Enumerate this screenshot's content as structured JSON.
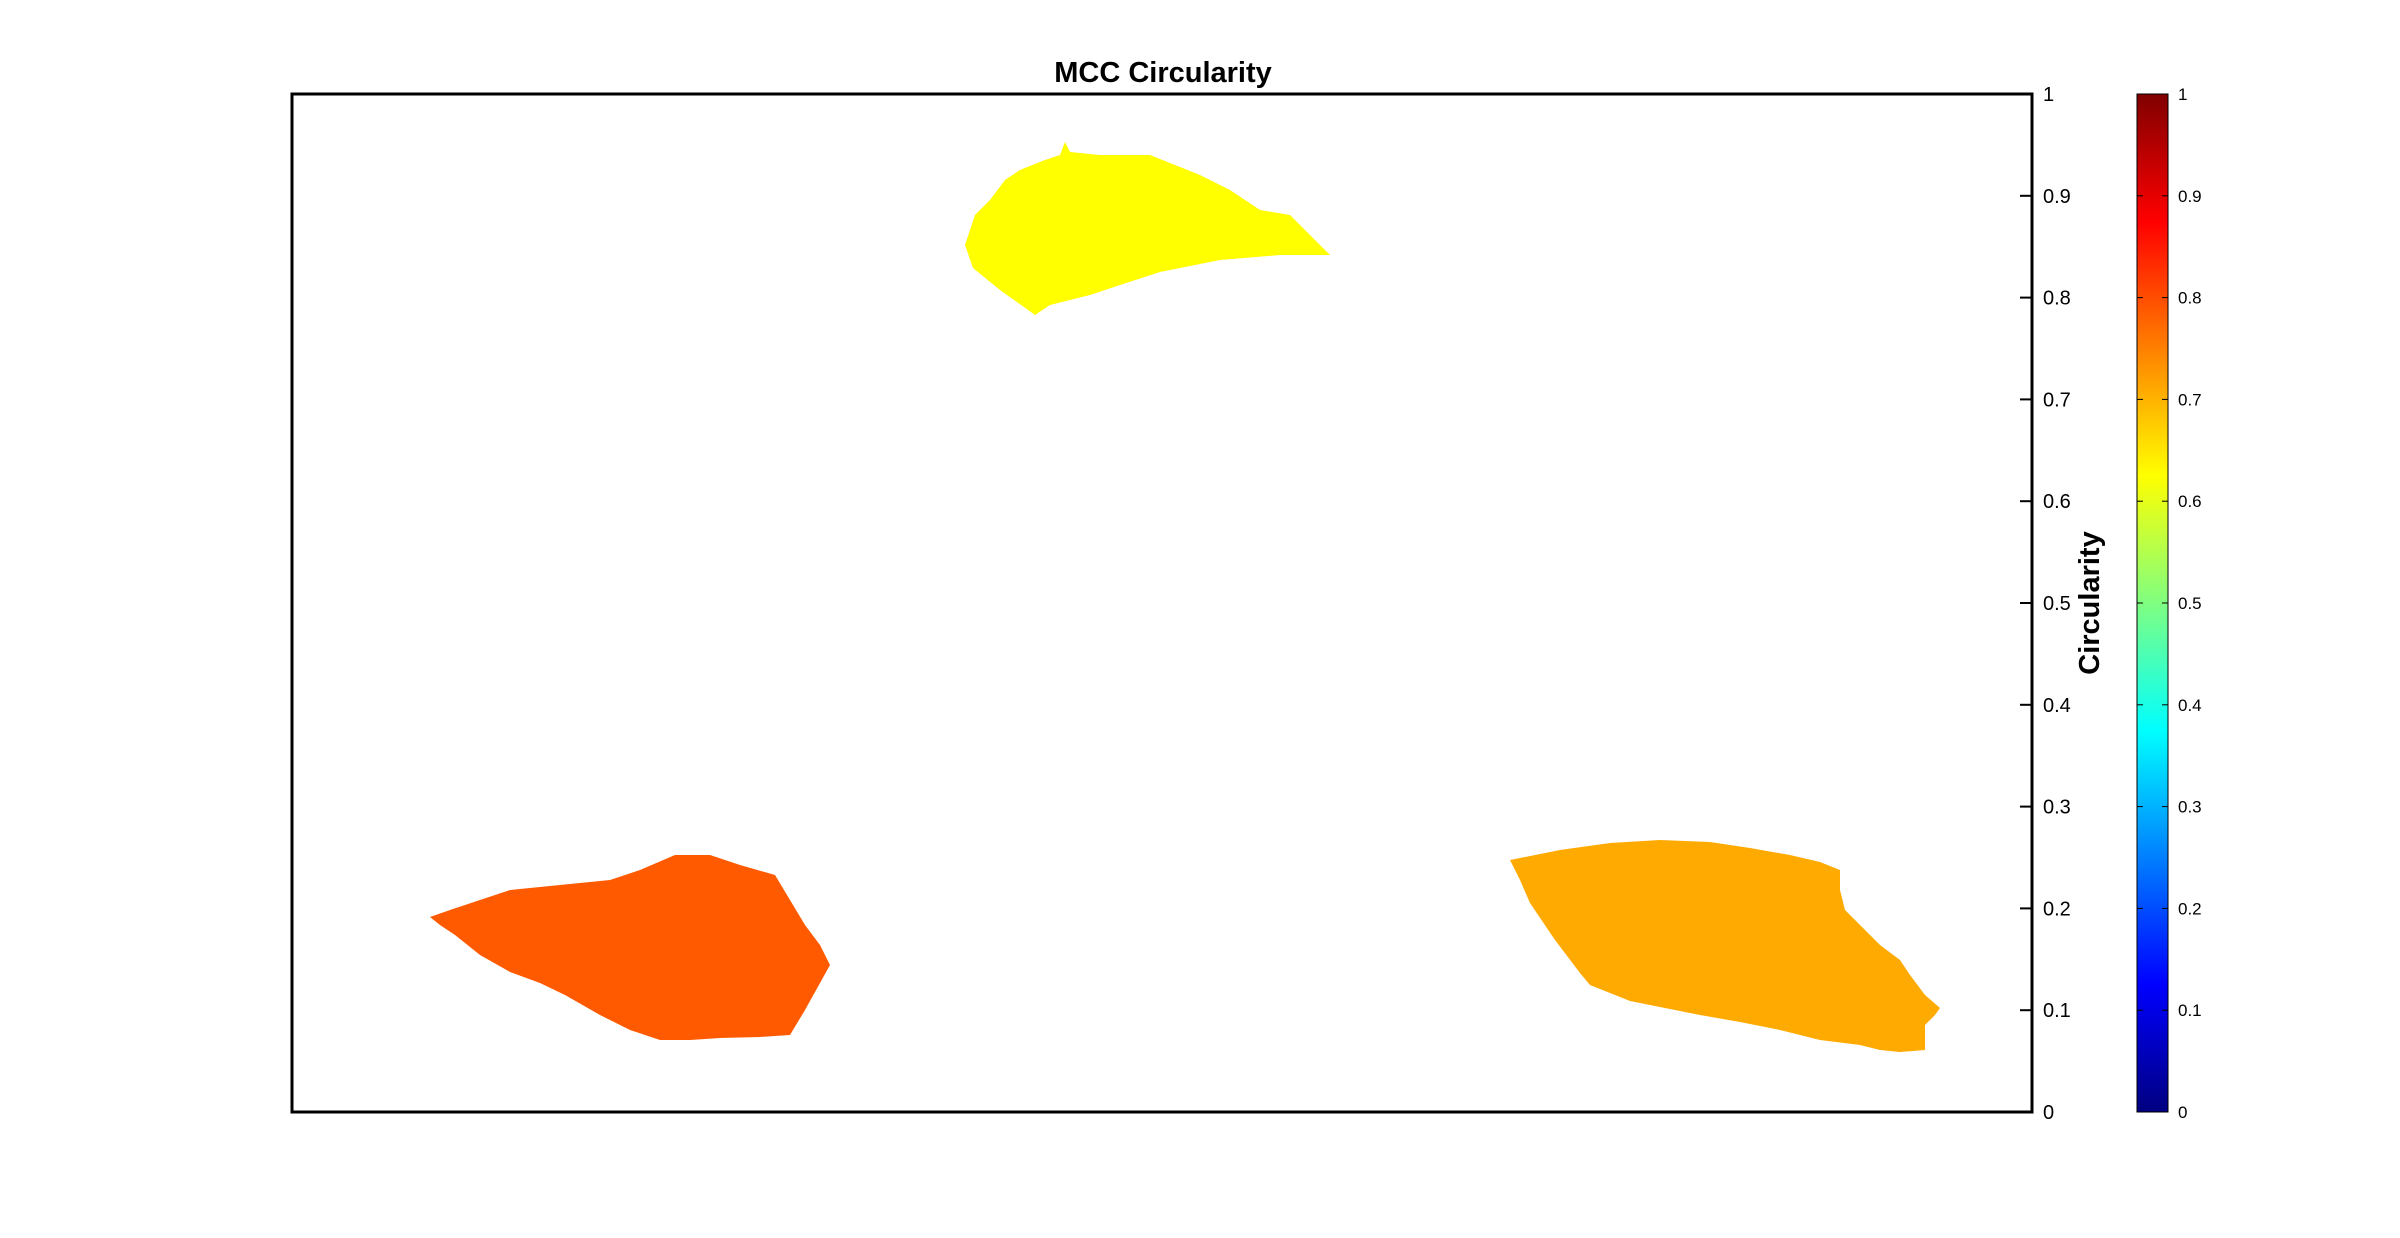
{
  "chart_data": {
    "type": "heatmap",
    "title": "MCC Circularity",
    "ylabel": "Circularity",
    "ylim": [
      0,
      1
    ],
    "yticks": [
      "0",
      "0.1",
      "0.2",
      "0.3",
      "0.4",
      "0.5",
      "0.6",
      "0.7",
      "0.8",
      "0.9",
      "1"
    ],
    "colorbar": {
      "colormap": "jet",
      "clim": [
        0,
        1
      ],
      "ticks": [
        "0",
        "0.1",
        "0.2",
        "0.3",
        "0.4",
        "0.5",
        "0.6",
        "0.7",
        "0.8",
        "0.9",
        "1"
      ]
    },
    "regions": [
      {
        "id": "top",
        "circularity": 0.6,
        "color": "#ffff00"
      },
      {
        "id": "bottom-left",
        "circularity": 0.73,
        "color": "#ff5a00"
      },
      {
        "id": "bottom-right",
        "circularity": 0.67,
        "color": "#ffaa00"
      }
    ]
  }
}
